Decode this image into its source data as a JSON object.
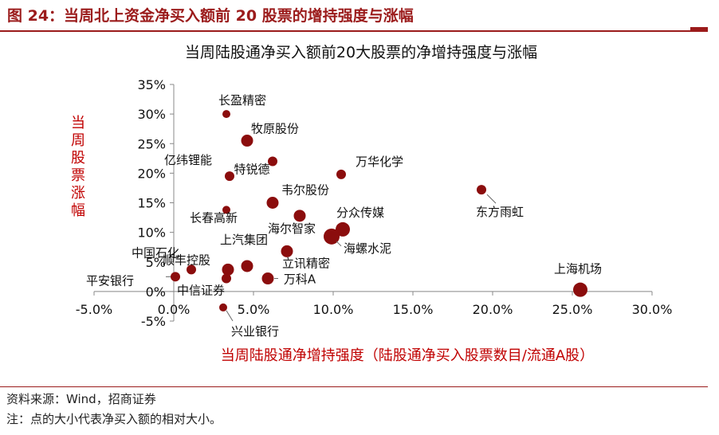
{
  "figure": {
    "caption": "图 24：当周北上资金净买入额前 20 股票的增持强度与涨幅",
    "source": "资料来源：Wind，招商证券",
    "note": "注：点的大小代表净买入额的相对大小。"
  },
  "colors": {
    "accent": "#9b1b1b",
    "marker": "#8b0d0d",
    "axis_label": "#c00000",
    "leader": "#666666"
  },
  "chart_data": {
    "type": "scatter",
    "title": "当周陆股通净买入额前20大股票的净增持强度与涨幅",
    "xlabel": "当周陆股通净增持强度（陆股通净买入股票数目/流通A股）",
    "ylabel": "当周股票涨幅",
    "xlim": [
      -0.05,
      0.3
    ],
    "ylim": [
      -0.05,
      0.35
    ],
    "xticks": [
      -0.05,
      0.0,
      0.05,
      0.1,
      0.15,
      0.2,
      0.25,
      0.3
    ],
    "xtick_labels": [
      "-5.0%",
      "0.0%",
      "5.0%",
      "10.0%",
      "15.0%",
      "20.0%",
      "25.0%",
      "30.0%"
    ],
    "yticks": [
      -0.05,
      0.0,
      0.05,
      0.1,
      0.15,
      0.2,
      0.25,
      0.3,
      0.35
    ],
    "ytick_labels": [
      "-5%",
      "0%",
      "5%",
      "10%",
      "15%",
      "20%",
      "25%",
      "30%",
      "35%"
    ],
    "grid": false,
    "points": [
      {
        "name": "长盈精密",
        "x": 0.033,
        "y": 0.3,
        "size": 1
      },
      {
        "name": "牧原股份",
        "x": 0.046,
        "y": 0.255,
        "size": 3
      },
      {
        "name": "特锐德",
        "x": 0.062,
        "y": 0.22,
        "size": 2
      },
      {
        "name": "亿纬锂能",
        "x": 0.035,
        "y": 0.195,
        "size": 2
      },
      {
        "name": "万华化学",
        "x": 0.105,
        "y": 0.198,
        "size": 2
      },
      {
        "name": "东方雨虹",
        "x": 0.193,
        "y": 0.172,
        "size": 2
      },
      {
        "name": "韦尔股份",
        "x": 0.062,
        "y": 0.15,
        "size": 3
      },
      {
        "name": "长春高新",
        "x": 0.033,
        "y": 0.138,
        "size": 1
      },
      {
        "name": "海尔智家",
        "x": 0.079,
        "y": 0.128,
        "size": 3
      },
      {
        "name": "分众传媒",
        "x": 0.106,
        "y": 0.105,
        "size": 4
      },
      {
        "name": "海螺水泥",
        "x": 0.099,
        "y": 0.093,
        "size": 5
      },
      {
        "name": "顺丰控股",
        "x": 0.034,
        "y": 0.037,
        "size": 3
      },
      {
        "name": "上汽集团",
        "x": 0.046,
        "y": 0.043,
        "size": 3
      },
      {
        "name": "立讯精密",
        "x": 0.071,
        "y": 0.068,
        "size": 3
      },
      {
        "name": "中国石化",
        "x": 0.011,
        "y": 0.037,
        "size": 2
      },
      {
        "name": "平安银行",
        "x": 0.001,
        "y": 0.025,
        "size": 2
      },
      {
        "name": "中信证券",
        "x": 0.033,
        "y": 0.022,
        "size": 2
      },
      {
        "name": "万科A",
        "x": 0.059,
        "y": 0.022,
        "size": 3
      },
      {
        "name": "上海机场",
        "x": 0.255,
        "y": 0.003,
        "size": 4
      },
      {
        "name": "兴业银行",
        "x": 0.031,
        "y": -0.027,
        "size": 1
      }
    ]
  }
}
